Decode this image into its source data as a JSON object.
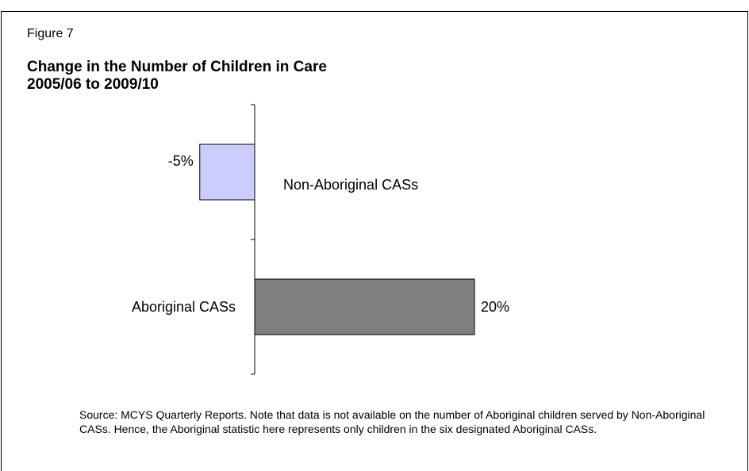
{
  "figure_label": "Figure 7",
  "title_line1": "Change in the Number of Children in Care",
  "title_line2": "2005/06 to 2009/10",
  "source_note": "Source:    MCYS Quarterly Reports.  Note that data is not available on the number of Aboriginal children served by Non-Aboriginal CASs.   Hence, the Aboriginal statistic here represents only children in the six designated Aboriginal CASs.",
  "colors": {
    "non_aboriginal": "#ccccff",
    "aboriginal": "#808080"
  },
  "chart_data": {
    "type": "bar",
    "orientation": "horizontal",
    "categories": [
      "Non-Aboriginal CASs",
      "Aboriginal CASs"
    ],
    "values": [
      -5,
      20
    ],
    "data_labels": [
      "-5%",
      "20%"
    ],
    "title": "Change in the Number of Children in Care 2005/06 to 2009/10",
    "xlabel": "",
    "ylabel": "",
    "grid": false,
    "legend": "none"
  }
}
